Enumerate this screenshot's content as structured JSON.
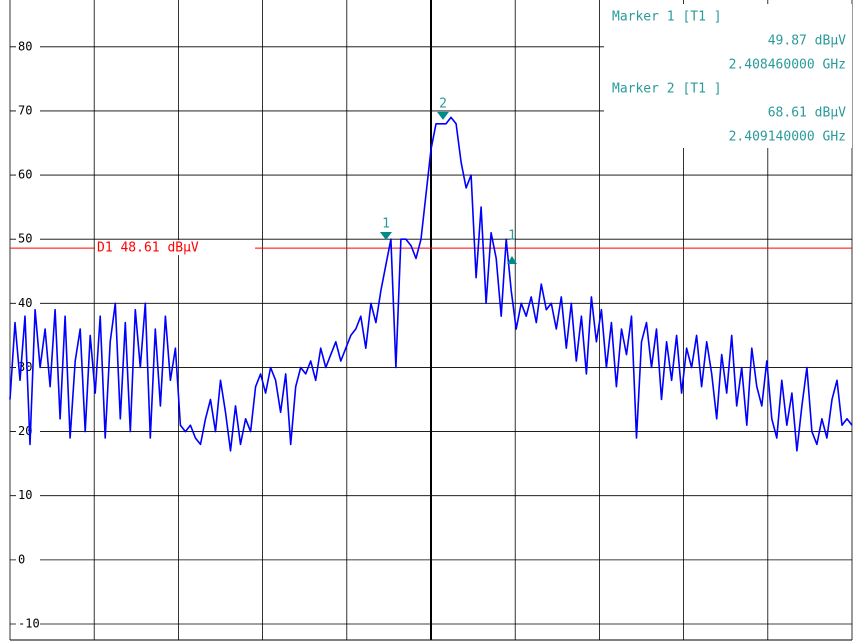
{
  "chart_data": {
    "type": "line",
    "ylim": [
      -12.5,
      87.3
    ],
    "yticks": [
      -10,
      0,
      10,
      20,
      30,
      40,
      50,
      60,
      70,
      80
    ],
    "grid": true,
    "color": "#0000ff",
    "values": [
      25,
      37,
      28,
      38,
      18,
      39,
      30,
      36,
      27,
      39,
      22,
      38,
      19,
      31,
      36,
      20,
      35,
      26,
      38,
      19,
      34,
      40,
      22,
      37,
      20,
      39,
      30,
      40,
      19,
      36,
      24,
      38,
      28,
      33,
      21,
      20,
      21,
      19,
      18,
      22,
      25,
      20,
      28,
      23,
      17,
      24,
      18,
      22,
      20,
      27,
      29,
      26,
      30,
      28,
      23,
      29,
      18,
      27,
      30,
      29,
      31,
      28,
      33,
      30,
      32,
      34,
      31,
      33,
      35,
      36,
      38,
      33,
      40,
      37,
      42,
      46,
      50,
      30,
      50,
      50,
      49,
      47,
      50,
      57,
      64,
      68,
      68,
      68,
      69,
      68,
      62,
      58,
      60,
      44,
      55,
      40,
      51,
      47,
      38,
      50,
      42,
      36,
      40,
      38,
      41,
      37,
      43,
      39,
      40,
      36,
      41,
      33,
      40,
      31,
      38,
      29,
      41,
      34,
      39,
      30,
      37,
      27,
      36,
      32,
      38,
      19,
      34,
      37,
      30,
      36,
      25,
      34,
      28,
      35,
      26,
      33,
      30,
      35,
      27,
      34,
      29,
      22,
      32,
      26,
      35,
      24,
      30,
      21,
      33,
      27,
      24,
      31,
      22,
      19,
      28,
      21,
      26,
      17,
      24,
      30,
      20,
      18,
      22,
      19,
      25,
      28,
      21,
      22,
      21
    ],
    "display_line": {
      "label": "D1 48.61 dBµV",
      "value": 48.61,
      "color": "#ff0000"
    },
    "markers": [
      {
        "title": "Marker 1 [T1 ]",
        "value": 49.87,
        "value_label": "49.87 dBµV",
        "frequency": "2.408460000 GHz",
        "symbol": "1"
      },
      {
        "title": "Marker 2 [T1 ]",
        "value": 68.61,
        "value_label": "68.61 dBµV",
        "frequency": "2.409140000 GHz",
        "symbol": "2"
      },
      {
        "symbol": "1"
      }
    ]
  }
}
